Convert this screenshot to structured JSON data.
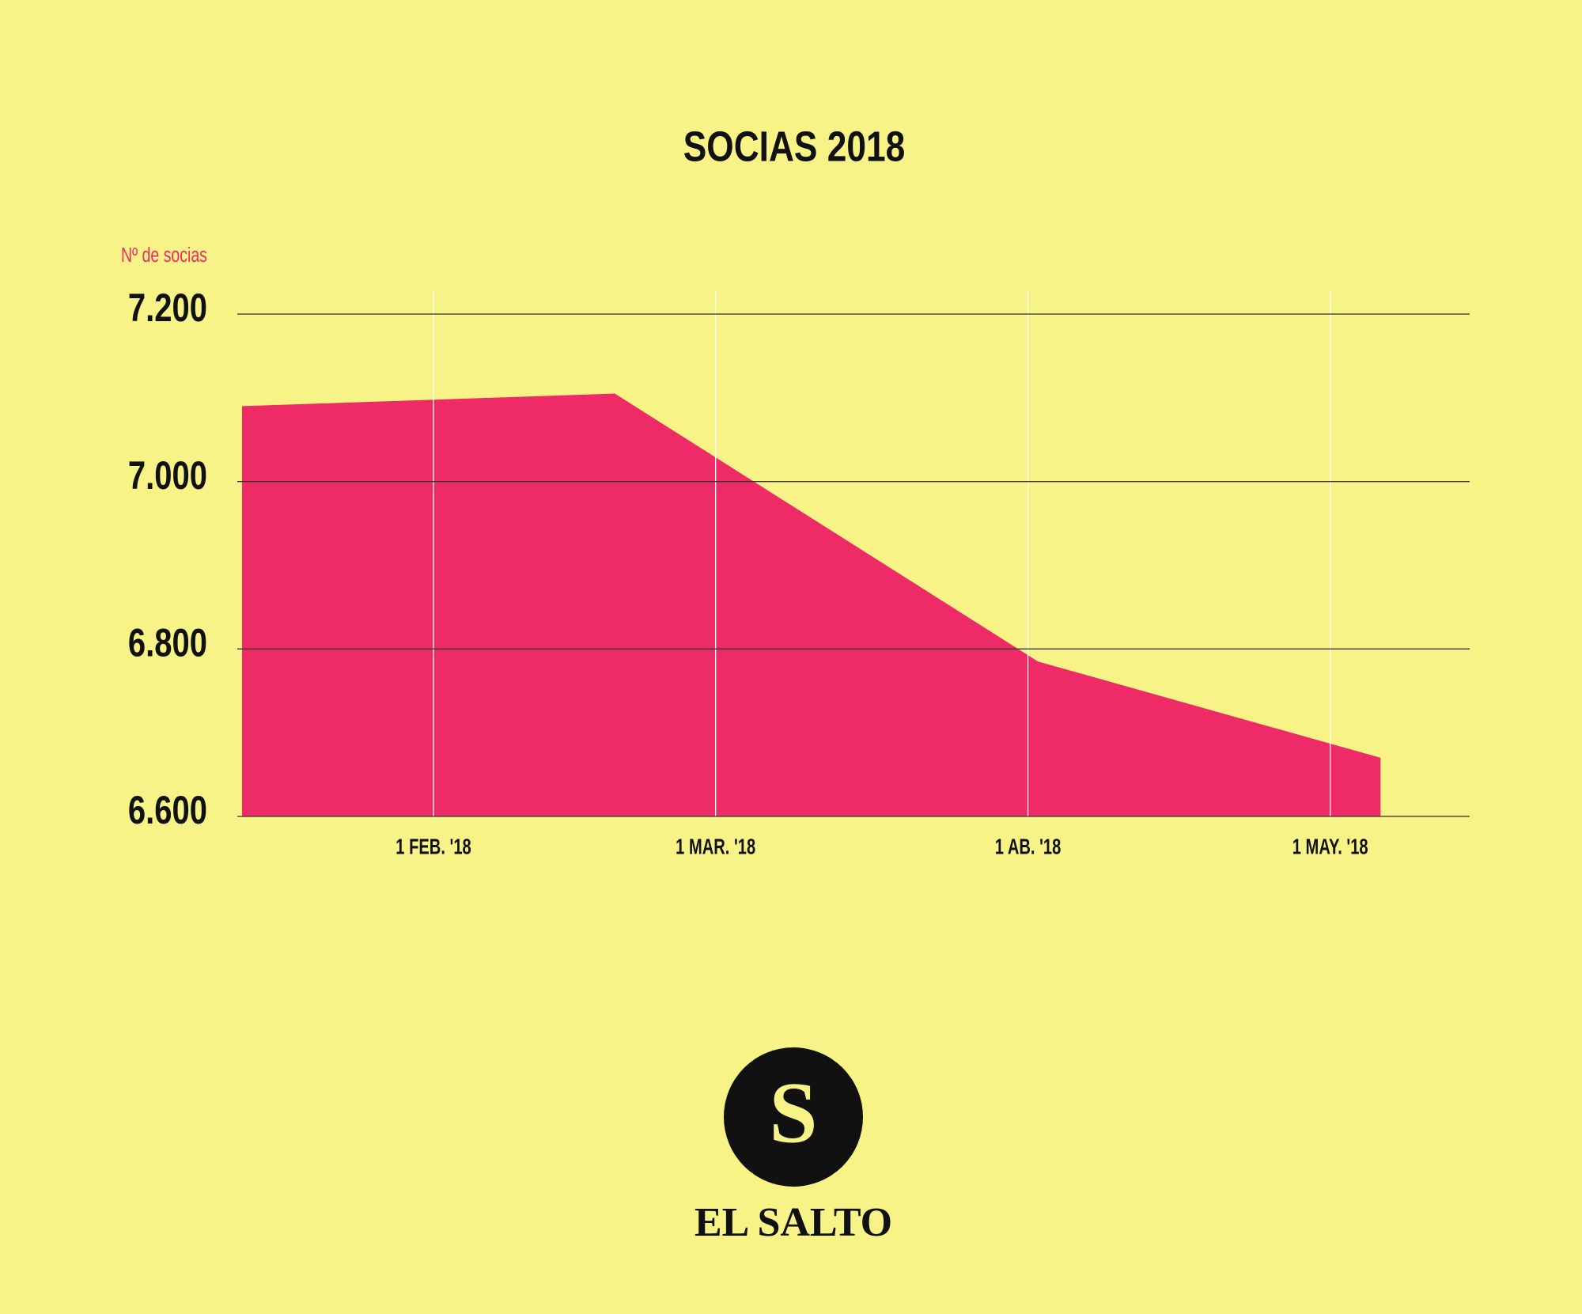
{
  "chart_data": {
    "type": "area",
    "title": "SOCIAS 2018",
    "y_label": "Nº de socias",
    "x": [
      "2018-01-13",
      "2018-02-19",
      "2018-04-02",
      "2018-05-06"
    ],
    "values": [
      7090,
      7105,
      6785,
      6670
    ],
    "color": "#ee2b66",
    "xlim": [
      "2018-01-13",
      "2018-05-15"
    ],
    "xticks": [
      {
        "value": "2018-02-01",
        "label": "1 FEB. '18"
      },
      {
        "value": "2018-03-01",
        "label": "1 MAR. '18"
      },
      {
        "value": "2018-04-01",
        "label": "1 AB. '18"
      },
      {
        "value": "2018-05-01",
        "label": "1 MAY. '18"
      }
    ],
    "ylim": [
      6600,
      7200
    ],
    "yticks": [
      {
        "value": 6600,
        "label": "6.600"
      },
      {
        "value": 6800,
        "label": "6.800"
      },
      {
        "value": 7000,
        "label": "7.000"
      },
      {
        "value": 7200,
        "label": "7.200"
      }
    ],
    "grid": true
  },
  "logo": {
    "letter": "S",
    "name": "EL SALTO"
  }
}
